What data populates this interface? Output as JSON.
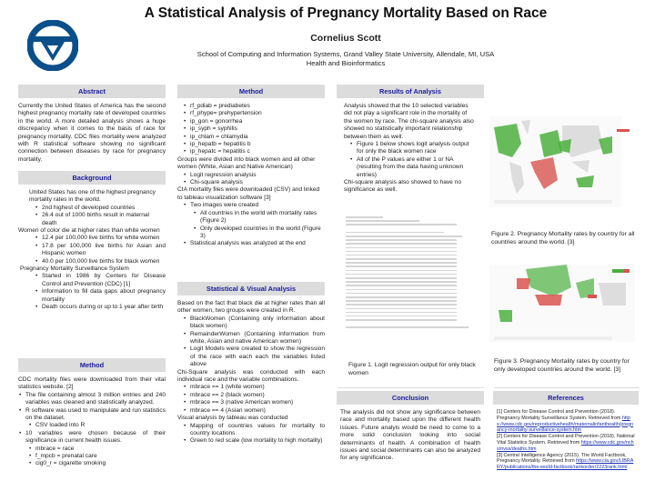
{
  "header": {
    "title": "A Statistical Analysis of Pregnancy Mortality Based on Race",
    "author": "Cornelius Scott",
    "affiliation": "School of Computing and Information Systems, Grand Valley State University, Allendale, MI, USA",
    "department": "Health and Bioinformatics",
    "logo_color": "#0a4f8a"
  },
  "abstract": {
    "heading": "Abstract",
    "text": "Currently the United States of America has the second highest pregnancy mortality rate of developed countries in the world. A more detailed analysis shows a huge discrepancy when it comes to the basis of race for pregnancy mortality. CDC files mortality were analyzed with R statistical software showing no significant connection between diseases by race for pregnancy mortality."
  },
  "background": {
    "heading": "Background",
    "intro": "United States has one of the highest pregnancy mortality rates in the world.",
    "intro_items": [
      "2nd highest of developed countries",
      "26.4 out of 1000 births result in maternal death"
    ],
    "color": "Women of color die at higher rates than white women",
    "color_items": [
      "12.4 per 100,000 live births for white women",
      "17.8 per 100,000 live births for Asian and Hispanic women",
      "40.0 per 100,000 live births for black women"
    ],
    "pmss": "Pregnancy Mortality Surveillance System",
    "pmss_items": [
      "Started in 1986 by Centers for Disease Control and Prevention (CDC) [1]",
      "Information to fill data gaps about pregnancy mortality",
      "Death occurs during or up to 1 year after birth"
    ]
  },
  "method1": {
    "heading": "Method",
    "intro": "CDC mortality files were downloaded from their vital statistics website. [2]",
    "items": [
      "The file containing almost 3 million entries and 240 variables was cleaned and statistically analyzed.",
      "R software was used to manipulate and run statistics on the dataset.",
      "10 variables were chosen because of their significance in current health issues."
    ],
    "sub_r": "CSV loaded into R",
    "vars": [
      "mbrace = race",
      "f_mpcb = prenatal care",
      "cig0_r = cigarette smoking"
    ]
  },
  "method2": {
    "heading": "Method",
    "vars": [
      "rf_pdiab = prediabetes",
      "rf_phype= prehypertension",
      "ip_gon = gonorrhea",
      "ip_syph = syphilis",
      "ip_chlam = chlamydia",
      "ip_hepatb = hepatitis b",
      "ip_hepatc = hepatitis c"
    ],
    "groups": "Groups were divided into black women and all other women (White, Asian and Native American)",
    "group_items": [
      "Logit regression analysis",
      "Chi-square analysis"
    ],
    "cia": "CIA mortality files were downloaded (CSV) and linked to tableau visualization software [3]",
    "two_images": "Two images were created",
    "image_items": [
      "All countries in the world with mortality rates (Figure 2)",
      "Only developed countries in the world (Figure 3)"
    ],
    "final": "Statistical analysis was analyzed at the end"
  },
  "stat": {
    "heading": "Statistical  & Visual Analysis",
    "intro": "Based on the fact that black die at higher rates than all other women, two groups were created in R.",
    "items": [
      "BlackWomen (Containing only information about black women)",
      "RemainderWomen (Containing information from white, Asian and native American women)",
      "Logit Models were created to show the regression of the race with each each the variables listed above"
    ],
    "chi": "Chi-Square analysis was conducted with each individual race and the variable combinations.",
    "chi_items": [
      "mbrace == 1 (white women)",
      "mbrace == 2 (black women)",
      "mbrace == 3 (native American women)",
      "mbrace == 4 (Asian women)"
    ],
    "visual": "Visual analysis by tableau was conducted",
    "visual_items": [
      "Mapping of countries values for mortality to country locations",
      "Green to red scale (low mortality to high mortality)"
    ]
  },
  "results": {
    "heading": "Results  of Analysis",
    "text": "Analysis showed that the 10 selected variables did not play a significant role in the mortality of the women by race. The chi-square analysis also showed no statistically important relationship between them as well.",
    "items": [
      "Figure 1 below shows logit analysis output for only the black women race",
      "All of the P values are either 1 or NA (resulting from the data having unknown entries)"
    ],
    "chi": "Chi-square analysis also showed to have no significance as well.",
    "fig1_caption": "Figure 1. Logit regression output for only black women"
  },
  "conclusion": {
    "heading": "Conclusion",
    "text": "The analysis did not show any significance between race and mortality based upon the different health issues. Future analyis would be need to come to a more solid conclusion looking into social determinants of health. A combination of health issues and social determinants can also be analyzed for any significance."
  },
  "figures": {
    "fig2_caption": "Figure 2. Pregnancy Mortality rates by country for all countries around the world. [3]",
    "fig3_caption": "Figure 3. Pregnancy Mortality rates by country for only developed countries around the world. [3]",
    "low_color": "#4caf3e",
    "high_color": "#d9534f"
  },
  "references": {
    "heading": "References",
    "items": [
      {
        "text": "[1] Centers for Disease Control and Prevention (2018). Pregnancy Mortality Surveillance System. Retrieved from",
        "link": "https://www.cdc.gov/reproductivehealth/maternalinfanthealth/pregnancy-mortality-surveillance-system.htm"
      },
      {
        "text": "[2] Centers for Disease Control and Prevention (2018). National Vital Statistics System. Retrieved from",
        "link": "https://www.cdc.gov/nchs/nvss/deaths.htm"
      },
      {
        "text": "[3] Central Intelligence Agency (2015). The World Factbook, Pregnancy Mortality. Retrieved from",
        "link": "https://www.cia.gov/LIBRARY/publications/the-world-factbook/rankorder/2223rank.html"
      }
    ]
  }
}
